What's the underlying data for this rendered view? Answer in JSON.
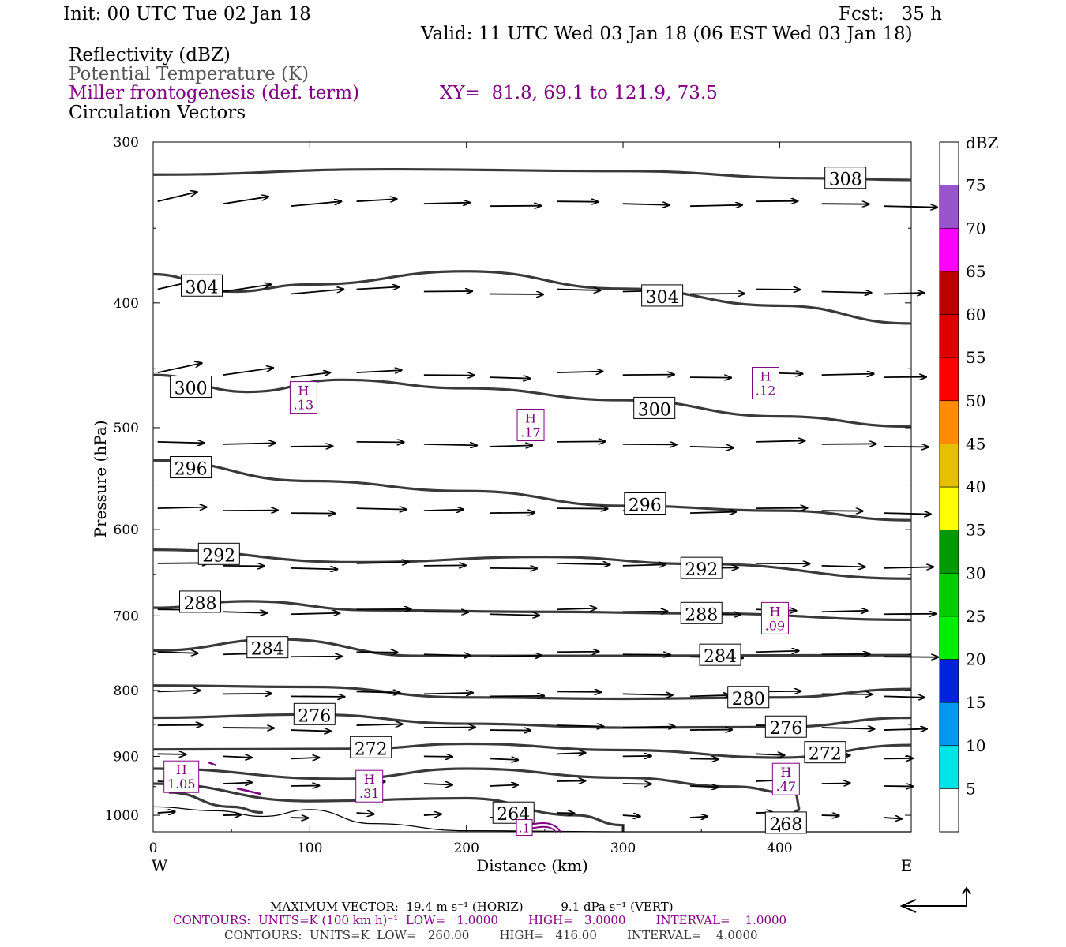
{
  "header": {
    "init": "Init: 00 UTC Tue 02 Jan 18",
    "fcst": "Fcst:   35 h",
    "valid": "Valid: 11 UTC Wed 03 Jan 18 (06 EST Wed 03 Jan 18)",
    "field1": "Reflectivity (dBZ)",
    "field2": "Potential Temperature (K)",
    "field3": "Miller frontogenesis (def. term)",
    "xy": "XY=  81.8, 69.1 to 121.9, 73.5",
    "field4": "Circulation Vectors"
  },
  "footer": {
    "maxvec": "MAXIMUM VECTOR:  19.4 m s⁻¹ (HORIZ)          9.1 dPa s⁻¹ (VERT)",
    "contours1": "CONTOURS:  UNITS=K (100 km h)⁻¹  LOW=   1.0000        HIGH=   3.0000        INTERVAL=    1.0000",
    "contours2": "CONTOURS:  UNITS=K  LOW=   260.00        HIGH=   416.00        INTERVAL=    4.0000"
  },
  "colors": {
    "theta": "#3a3a3a",
    "fronto": "#800080",
    "vector": "#000000"
  },
  "chart_data": {
    "type": "cross-section",
    "xlabel": "Distance (km)",
    "ylabel": "Pressure (hPa)",
    "xlim": [
      0,
      484
    ],
    "ylim": [
      1030,
      300
    ],
    "y_scale": "log",
    "x_ticks": [
      0,
      100,
      200,
      300,
      400
    ],
    "y_ticks": [
      300,
      400,
      500,
      600,
      700,
      800,
      900,
      1000
    ],
    "x_end_labels": [
      "W",
      "E"
    ],
    "colorbar": {
      "label": "dBZ",
      "levels": [
        "5",
        "10",
        "15",
        "20",
        "25",
        "30",
        "35",
        "40",
        "45",
        "50",
        "55",
        "60",
        "65",
        "70",
        "75"
      ],
      "colors": [
        "#ffffff",
        "#00e5e5",
        "#0099ee",
        "#0022dd",
        "#00ee00",
        "#00cc00",
        "#009900",
        "#ffff00",
        "#e5bf00",
        "#ff8c00",
        "#ff0000",
        "#dd0000",
        "#bb0000",
        "#ff00ff",
        "#9955cc",
        "#ffffff"
      ]
    },
    "theta_contours": [
      {
        "value": 308,
        "label": "308",
        "points": [
          [
            0,
            318
          ],
          [
            150,
            315
          ],
          [
            300,
            316
          ],
          [
            420,
            320
          ],
          [
            484,
            321
          ]
        ],
        "labels_at": [
          [
            442,
            320
          ]
        ]
      },
      {
        "value": 304,
        "label": "304",
        "points": [
          [
            0,
            380
          ],
          [
            50,
            392
          ],
          [
            100,
            387
          ],
          [
            200,
            378
          ],
          [
            300,
            390
          ],
          [
            400,
            402
          ],
          [
            484,
            415
          ]
        ],
        "labels_at": [
          [
            31,
            388
          ],
          [
            325,
            395
          ]
        ]
      },
      {
        "value": 300,
        "label": "300",
        "points": [
          [
            0,
            455
          ],
          [
            60,
            469
          ],
          [
            120,
            459
          ],
          [
            200,
            466
          ],
          [
            300,
            476
          ],
          [
            400,
            490
          ],
          [
            484,
            499
          ]
        ],
        "labels_at": [
          [
            24,
            465
          ],
          [
            320,
            483
          ]
        ]
      },
      {
        "value": 296,
        "label": "296",
        "points": [
          [
            0,
            530
          ],
          [
            100,
            550
          ],
          [
            200,
            560
          ],
          [
            300,
            575
          ],
          [
            400,
            580
          ],
          [
            484,
            590
          ]
        ],
        "labels_at": [
          [
            24,
            537
          ],
          [
            314,
            573
          ]
        ]
      },
      {
        "value": 292,
        "label": "292",
        "points": [
          [
            0,
            622
          ],
          [
            130,
            636
          ],
          [
            250,
            630
          ],
          [
            350,
            638
          ],
          [
            484,
            655
          ]
        ],
        "labels_at": [
          [
            42,
            627
          ],
          [
            350,
            643
          ]
        ]
      },
      {
        "value": 288,
        "label": "288",
        "points": [
          [
            0,
            690
          ],
          [
            60,
            682
          ],
          [
            140,
            693
          ],
          [
            250,
            695
          ],
          [
            350,
            697
          ],
          [
            484,
            705
          ]
        ],
        "labels_at": [
          [
            30,
            683
          ],
          [
            350,
            697
          ]
        ]
      },
      {
        "value": 284,
        "label": "284",
        "points": [
          [
            0,
            745
          ],
          [
            80,
            730
          ],
          [
            170,
            752
          ],
          [
            300,
            752
          ],
          [
            484,
            751
          ]
        ],
        "labels_at": [
          [
            73,
            741
          ],
          [
            362,
            751
          ]
        ]
      },
      {
        "value": 280,
        "label": "280",
        "points": [
          [
            0,
            793
          ],
          [
            100,
            795
          ],
          [
            200,
            810
          ],
          [
            300,
            812
          ],
          [
            400,
            810
          ],
          [
            484,
            798
          ]
        ],
        "labels_at": [
          [
            380,
            810
          ]
        ]
      },
      {
        "value": 276,
        "label": "276",
        "points": [
          [
            0,
            840
          ],
          [
            100,
            835
          ],
          [
            200,
            849
          ],
          [
            300,
            855
          ],
          [
            400,
            854
          ],
          [
            484,
            840
          ]
        ],
        "labels_at": [
          [
            103,
            835
          ],
          [
            404,
            854
          ]
        ]
      },
      {
        "value": 272,
        "label": "272",
        "points": [
          [
            0,
            889
          ],
          [
            130,
            888
          ],
          [
            200,
            880
          ],
          [
            300,
            890
          ],
          [
            400,
            902
          ],
          [
            484,
            882
          ]
        ],
        "labels_at": [
          [
            139,
            886
          ],
          [
            429,
            894
          ]
        ]
      },
      {
        "value": 268,
        "label": "268",
        "points": [
          [
            0,
            920
          ],
          [
            120,
            937
          ],
          [
            200,
            920
          ],
          [
            300,
            935
          ],
          [
            370,
            950
          ],
          [
            410,
            962
          ],
          [
            413,
            990
          ],
          [
            400,
            1030
          ]
        ],
        "labels_at": [
          [
            404,
            1014
          ]
        ]
      },
      {
        "value": 264,
        "label": "264",
        "points": [
          [
            0,
            945
          ],
          [
            100,
            975
          ],
          [
            200,
            970
          ],
          [
            270,
            1000
          ],
          [
            300,
            1018
          ],
          [
            300,
            1030
          ]
        ],
        "labels_at": [
          [
            230,
            996
          ]
        ]
      },
      {
        "value": 260,
        "label": "",
        "points": [
          [
            10,
            960
          ],
          [
            50,
            985
          ],
          [
            70,
            995
          ]
        ],
        "labels_at": []
      }
    ],
    "frontogenesis_maxima": [
      {
        "label": "H",
        "value": ".13",
        "x": 96,
        "p": 475
      },
      {
        "label": "H",
        "value": ".17",
        "x": 241,
        "p": 499
      },
      {
        "label": "H",
        "value": ".12",
        "x": 391,
        "p": 463
      },
      {
        "label": "H",
        "value": ".09",
        "x": 397,
        "p": 705
      },
      {
        "label": "H",
        "value": "1.05",
        "x": 18,
        "p": 936
      },
      {
        "label": "H",
        "value": ".31",
        "x": 138,
        "p": 952
      },
      {
        "label": "H",
        "value": ".47",
        "x": 404,
        "p": 940
      },
      {
        "label": "",
        "value": ".1",
        "x": 237,
        "p": 1025
      }
    ],
    "vectors": {
      "columns_x": [
        20,
        62,
        105,
        147,
        190,
        232,
        275,
        317,
        360,
        402,
        444,
        484
      ],
      "levels_hPa": [
        335,
        392,
        455,
        515,
        580,
        640,
        695,
        750,
        805,
        855,
        900,
        945,
        1000
      ],
      "note_direction": "west-to-east",
      "max_horiz_ms": 19.4,
      "max_vert_dPa_s": 9.1
    }
  }
}
